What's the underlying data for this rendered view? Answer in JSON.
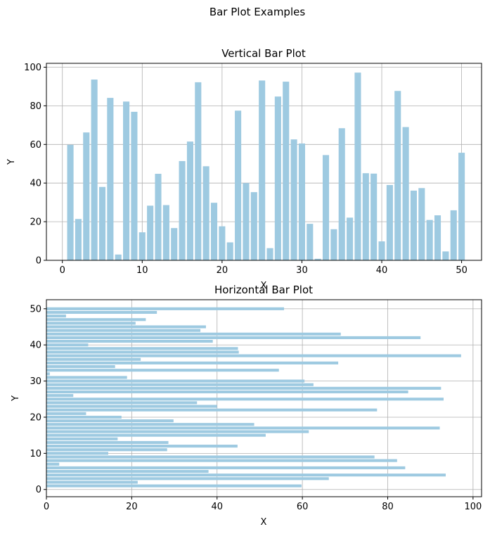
{
  "figure": {
    "title": "Bar Plot Examples",
    "bar_color": "#9ecae1",
    "grid_color": "#b0b0b0"
  },
  "chart_data": [
    {
      "type": "bar",
      "orientation": "vertical",
      "title": "Vertical Bar Plot",
      "xlabel": "X",
      "ylabel": "Y",
      "xlim": [
        -2,
        52.5
      ],
      "ylim": [
        0,
        102
      ],
      "xticks": [
        0,
        10,
        20,
        30,
        40,
        50
      ],
      "yticks": [
        0,
        20,
        40,
        60,
        80,
        100
      ],
      "grid": true,
      "x": [
        1,
        2,
        3,
        4,
        5,
        6,
        7,
        8,
        9,
        10,
        11,
        12,
        13,
        14,
        15,
        16,
        17,
        18,
        19,
        20,
        21,
        22,
        23,
        24,
        25,
        26,
        27,
        28,
        29,
        30,
        31,
        32,
        33,
        34,
        35,
        36,
        37,
        38,
        39,
        40,
        41,
        42,
        43,
        44,
        45,
        46,
        47,
        48,
        49,
        50
      ],
      "values": [
        59.8,
        21.4,
        66.2,
        93.6,
        38.0,
        84.1,
        3.0,
        82.2,
        76.9,
        14.5,
        28.3,
        44.8,
        28.6,
        16.7,
        51.4,
        61.5,
        92.2,
        48.7,
        29.8,
        17.6,
        9.3,
        77.5,
        40.0,
        35.3,
        93.1,
        6.3,
        84.8,
        92.5,
        62.6,
        60.5,
        18.9,
        0.8,
        54.5,
        16.1,
        68.4,
        22.1,
        97.2,
        45.1,
        44.9,
        9.8,
        39.0,
        87.7,
        69.0,
        36.1,
        37.4,
        20.9,
        23.3,
        4.6,
        25.9,
        55.7
      ]
    },
    {
      "type": "bar",
      "orientation": "horizontal",
      "title": "Horizontal Bar Plot",
      "xlabel": "X",
      "ylabel": "Y",
      "xlim": [
        0,
        102
      ],
      "ylim": [
        -2,
        52.5
      ],
      "xticks": [
        0,
        20,
        40,
        60,
        80,
        100
      ],
      "yticks": [
        0,
        10,
        20,
        30,
        40,
        50
      ],
      "grid": true,
      "y": [
        1,
        2,
        3,
        4,
        5,
        6,
        7,
        8,
        9,
        10,
        11,
        12,
        13,
        14,
        15,
        16,
        17,
        18,
        19,
        20,
        21,
        22,
        23,
        24,
        25,
        26,
        27,
        28,
        29,
        30,
        31,
        32,
        33,
        34,
        35,
        36,
        37,
        38,
        39,
        40,
        41,
        42,
        43,
        44,
        45,
        46,
        47,
        48,
        49,
        50
      ],
      "values": [
        59.8,
        21.4,
        66.2,
        93.6,
        38.0,
        84.1,
        3.0,
        82.2,
        76.9,
        14.5,
        28.3,
        44.8,
        28.6,
        16.7,
        51.4,
        61.5,
        92.2,
        48.7,
        29.8,
        17.6,
        9.3,
        77.5,
        40.0,
        35.3,
        93.1,
        6.3,
        84.8,
        92.5,
        62.6,
        60.5,
        18.9,
        0.8,
        54.5,
        16.1,
        68.4,
        22.1,
        97.2,
        45.1,
        44.9,
        9.8,
        39.0,
        87.7,
        69.0,
        36.1,
        37.4,
        20.9,
        23.3,
        4.6,
        25.9,
        55.7
      ]
    }
  ]
}
